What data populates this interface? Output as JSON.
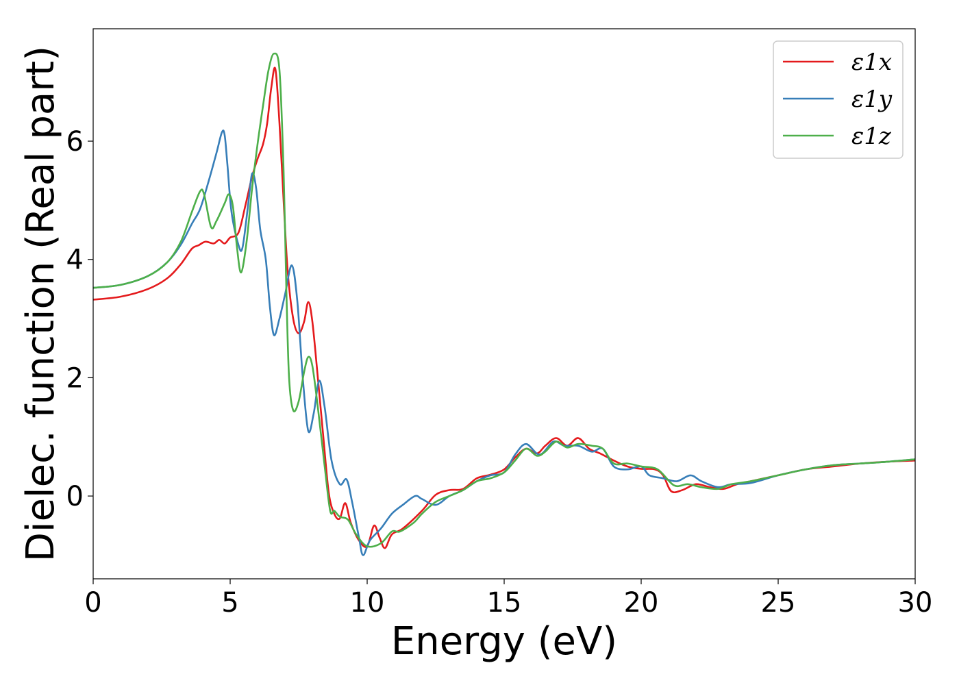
{
  "chart_data": {
    "type": "line",
    "title": "",
    "xlabel": "Energy (eV)",
    "ylabel": "Dielec. function (Real part)",
    "xlim": [
      0,
      30
    ],
    "ylim": [
      -1.4,
      7.9
    ],
    "xticks": [
      0,
      5,
      10,
      15,
      20,
      25,
      30
    ],
    "yticks": [
      0,
      2,
      4,
      6
    ],
    "grid": false,
    "legend_position": "top-right",
    "series": [
      {
        "name": "ε1x",
        "color": "#e41a1c",
        "points": [
          [
            0,
            3.32
          ],
          [
            1,
            3.37
          ],
          [
            2,
            3.5
          ],
          [
            2.7,
            3.68
          ],
          [
            3.2,
            3.92
          ],
          [
            3.6,
            4.18
          ],
          [
            3.85,
            4.24
          ],
          [
            4.1,
            4.3
          ],
          [
            4.4,
            4.27
          ],
          [
            4.6,
            4.33
          ],
          [
            4.8,
            4.27
          ],
          [
            5.0,
            4.37
          ],
          [
            5.3,
            4.45
          ],
          [
            5.55,
            4.9
          ],
          [
            5.8,
            5.4
          ],
          [
            6.0,
            5.7
          ],
          [
            6.2,
            5.95
          ],
          [
            6.35,
            6.3
          ],
          [
            6.5,
            6.9
          ],
          [
            6.65,
            7.22
          ],
          [
            6.8,
            6.3
          ],
          [
            6.95,
            5.0
          ],
          [
            7.1,
            3.8
          ],
          [
            7.3,
            3.0
          ],
          [
            7.5,
            2.75
          ],
          [
            7.7,
            2.95
          ],
          [
            7.85,
            3.28
          ],
          [
            8.0,
            2.95
          ],
          [
            8.2,
            2.0
          ],
          [
            8.4,
            1.0
          ],
          [
            8.6,
            0.05
          ],
          [
            8.8,
            -0.3
          ],
          [
            9.0,
            -0.38
          ],
          [
            9.2,
            -0.12
          ],
          [
            9.4,
            -0.45
          ],
          [
            9.7,
            -0.75
          ],
          [
            10.0,
            -0.85
          ],
          [
            10.25,
            -0.5
          ],
          [
            10.45,
            -0.7
          ],
          [
            10.65,
            -0.88
          ],
          [
            10.9,
            -0.65
          ],
          [
            11.3,
            -0.55
          ],
          [
            12.0,
            -0.25
          ],
          [
            12.5,
            0.02
          ],
          [
            13.0,
            0.1
          ],
          [
            13.5,
            0.12
          ],
          [
            14.0,
            0.3
          ],
          [
            14.5,
            0.36
          ],
          [
            15.0,
            0.45
          ],
          [
            15.4,
            0.65
          ],
          [
            15.8,
            0.8
          ],
          [
            16.2,
            0.72
          ],
          [
            16.5,
            0.85
          ],
          [
            16.9,
            0.98
          ],
          [
            17.3,
            0.85
          ],
          [
            17.7,
            0.98
          ],
          [
            18.1,
            0.8
          ],
          [
            18.5,
            0.72
          ],
          [
            19.0,
            0.6
          ],
          [
            19.5,
            0.5
          ],
          [
            20.0,
            0.46
          ],
          [
            20.5,
            0.45
          ],
          [
            20.8,
            0.35
          ],
          [
            21.1,
            0.08
          ],
          [
            21.5,
            0.1
          ],
          [
            22.0,
            0.2
          ],
          [
            22.5,
            0.15
          ],
          [
            23.0,
            0.12
          ],
          [
            23.5,
            0.2
          ],
          [
            24.0,
            0.25
          ],
          [
            25.0,
            0.35
          ],
          [
            26.0,
            0.45
          ],
          [
            27.0,
            0.5
          ],
          [
            28.0,
            0.55
          ],
          [
            29.0,
            0.58
          ],
          [
            30.0,
            0.6
          ]
        ]
      },
      {
        "name": "ε1y",
        "color": "#377eb8",
        "points": [
          [
            0,
            3.52
          ],
          [
            1,
            3.57
          ],
          [
            2,
            3.72
          ],
          [
            2.7,
            3.95
          ],
          [
            3.2,
            4.25
          ],
          [
            3.6,
            4.6
          ],
          [
            3.9,
            4.85
          ],
          [
            4.2,
            5.3
          ],
          [
            4.5,
            5.8
          ],
          [
            4.7,
            6.15
          ],
          [
            4.8,
            6.1
          ],
          [
            4.9,
            5.6
          ],
          [
            5.05,
            4.8
          ],
          [
            5.3,
            4.25
          ],
          [
            5.45,
            4.2
          ],
          [
            5.65,
            4.9
          ],
          [
            5.8,
            5.45
          ],
          [
            5.95,
            5.2
          ],
          [
            6.1,
            4.5
          ],
          [
            6.3,
            4.0
          ],
          [
            6.45,
            3.2
          ],
          [
            6.6,
            2.72
          ],
          [
            6.8,
            3.0
          ],
          [
            7.0,
            3.4
          ],
          [
            7.25,
            3.9
          ],
          [
            7.45,
            3.3
          ],
          [
            7.65,
            2.0
          ],
          [
            7.85,
            1.1
          ],
          [
            8.05,
            1.4
          ],
          [
            8.25,
            1.95
          ],
          [
            8.45,
            1.5
          ],
          [
            8.7,
            0.6
          ],
          [
            9.0,
            0.2
          ],
          [
            9.25,
            0.28
          ],
          [
            9.45,
            -0.1
          ],
          [
            9.7,
            -0.7
          ],
          [
            9.85,
            -1.0
          ],
          [
            10.1,
            -0.75
          ],
          [
            10.5,
            -0.55
          ],
          [
            10.9,
            -0.3
          ],
          [
            11.3,
            -0.15
          ],
          [
            11.75,
            0.0
          ],
          [
            12.0,
            -0.05
          ],
          [
            12.5,
            -0.15
          ],
          [
            13.0,
            0.0
          ],
          [
            13.5,
            0.1
          ],
          [
            14.0,
            0.25
          ],
          [
            14.5,
            0.35
          ],
          [
            15.0,
            0.4
          ],
          [
            15.4,
            0.7
          ],
          [
            15.8,
            0.88
          ],
          [
            16.3,
            0.7
          ],
          [
            16.8,
            0.92
          ],
          [
            17.2,
            0.85
          ],
          [
            17.7,
            0.85
          ],
          [
            18.2,
            0.75
          ],
          [
            18.6,
            0.8
          ],
          [
            19.0,
            0.5
          ],
          [
            19.5,
            0.45
          ],
          [
            20.0,
            0.5
          ],
          [
            20.3,
            0.35
          ],
          [
            20.8,
            0.3
          ],
          [
            21.3,
            0.25
          ],
          [
            21.8,
            0.35
          ],
          [
            22.2,
            0.25
          ],
          [
            22.8,
            0.15
          ],
          [
            23.3,
            0.2
          ],
          [
            24.0,
            0.22
          ],
          [
            25.0,
            0.35
          ],
          [
            26.0,
            0.45
          ],
          [
            27.0,
            0.52
          ],
          [
            28.0,
            0.55
          ],
          [
            29.0,
            0.58
          ],
          [
            30.0,
            0.62
          ]
        ]
      },
      {
        "name": "ε1z",
        "color": "#4daf4a",
        "points": [
          [
            0,
            3.52
          ],
          [
            1,
            3.57
          ],
          [
            2,
            3.72
          ],
          [
            2.7,
            3.95
          ],
          [
            3.2,
            4.3
          ],
          [
            3.6,
            4.8
          ],
          [
            3.9,
            5.15
          ],
          [
            4.05,
            5.1
          ],
          [
            4.3,
            4.55
          ],
          [
            4.5,
            4.65
          ],
          [
            4.8,
            4.95
          ],
          [
            4.95,
            5.1
          ],
          [
            5.1,
            4.9
          ],
          [
            5.25,
            4.2
          ],
          [
            5.4,
            3.78
          ],
          [
            5.6,
            4.3
          ],
          [
            5.8,
            5.2
          ],
          [
            6.0,
            5.95
          ],
          [
            6.2,
            6.6
          ],
          [
            6.4,
            7.2
          ],
          [
            6.6,
            7.48
          ],
          [
            6.8,
            7.2
          ],
          [
            6.95,
            5.5
          ],
          [
            7.05,
            3.5
          ],
          [
            7.15,
            2.0
          ],
          [
            7.3,
            1.45
          ],
          [
            7.5,
            1.6
          ],
          [
            7.7,
            2.1
          ],
          [
            7.85,
            2.35
          ],
          [
            8.0,
            2.2
          ],
          [
            8.2,
            1.5
          ],
          [
            8.45,
            0.5
          ],
          [
            8.65,
            -0.25
          ],
          [
            8.8,
            -0.25
          ],
          [
            9.0,
            -0.35
          ],
          [
            9.3,
            -0.4
          ],
          [
            9.6,
            -0.65
          ],
          [
            10.0,
            -0.85
          ],
          [
            10.5,
            -0.8
          ],
          [
            10.9,
            -0.6
          ],
          [
            11.2,
            -0.6
          ],
          [
            11.7,
            -0.45
          ],
          [
            12.0,
            -0.3
          ],
          [
            12.5,
            -0.1
          ],
          [
            13.0,
            0.0
          ],
          [
            13.5,
            0.1
          ],
          [
            14.0,
            0.25
          ],
          [
            14.5,
            0.3
          ],
          [
            15.0,
            0.4
          ],
          [
            15.4,
            0.6
          ],
          [
            15.8,
            0.8
          ],
          [
            16.2,
            0.68
          ],
          [
            16.5,
            0.75
          ],
          [
            16.9,
            0.92
          ],
          [
            17.3,
            0.82
          ],
          [
            17.7,
            0.88
          ],
          [
            18.2,
            0.85
          ],
          [
            18.6,
            0.8
          ],
          [
            19.0,
            0.55
          ],
          [
            19.5,
            0.55
          ],
          [
            20.0,
            0.5
          ],
          [
            20.6,
            0.45
          ],
          [
            21.2,
            0.18
          ],
          [
            21.7,
            0.2
          ],
          [
            22.2,
            0.15
          ],
          [
            22.8,
            0.12
          ],
          [
            23.3,
            0.2
          ],
          [
            24.0,
            0.25
          ],
          [
            25.0,
            0.35
          ],
          [
            26.0,
            0.45
          ],
          [
            27.0,
            0.52
          ],
          [
            28.0,
            0.55
          ],
          [
            29.0,
            0.58
          ],
          [
            30.0,
            0.62
          ]
        ]
      }
    ]
  }
}
